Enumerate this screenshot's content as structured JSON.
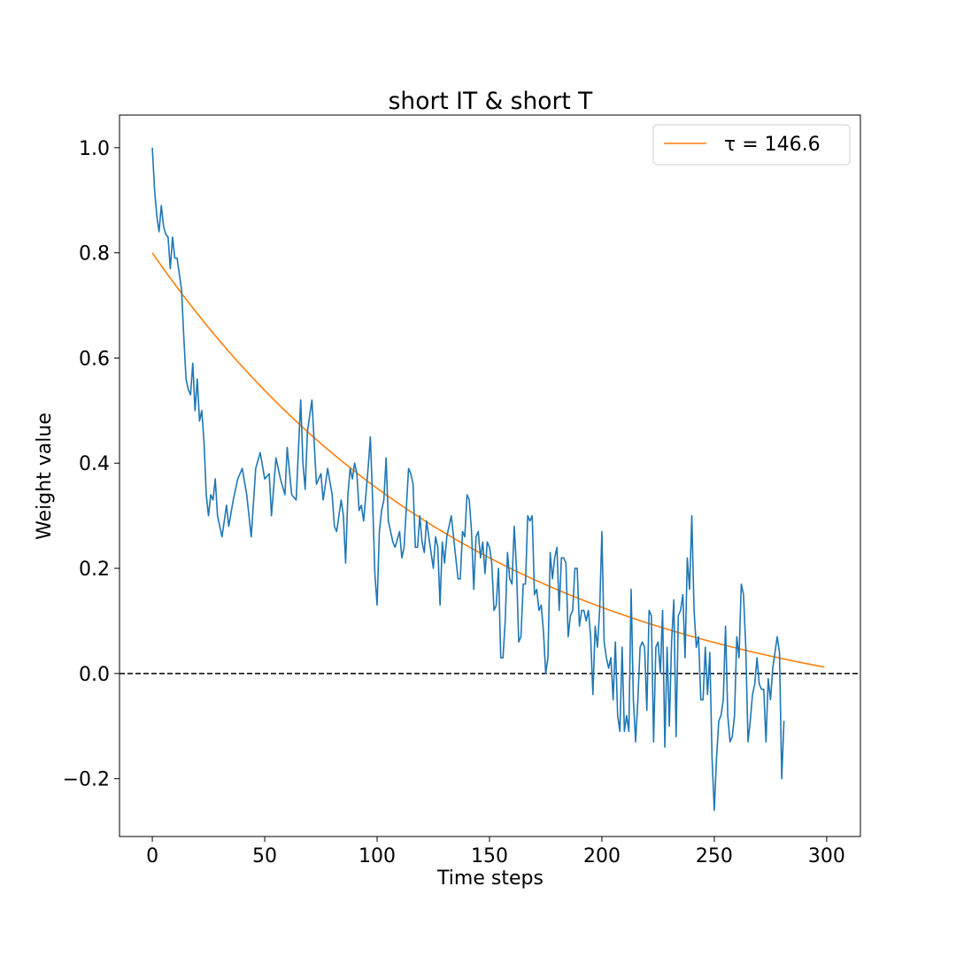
{
  "chart_data": {
    "type": "line",
    "title": "short IT & short T",
    "xlabel": "Time steps",
    "ylabel": "Weight value",
    "xlim": [
      -14.6,
      315
    ],
    "ylim": [
      -0.31,
      1.062
    ],
    "xticks": [
      0,
      50,
      100,
      150,
      200,
      250,
      300
    ],
    "xtick_labels": [
      "0",
      "50",
      "100",
      "150",
      "200",
      "250",
      "300"
    ],
    "yticks": [
      -0.2,
      0.0,
      0.2,
      0.4,
      0.6,
      0.8,
      1.0
    ],
    "ytick_labels": [
      "−0.2",
      "0.0",
      "0.2",
      "0.4",
      "0.6",
      "0.8",
      "1.0"
    ],
    "grid": false,
    "legend_position": "upper right",
    "legend_label": "τ =  146.6",
    "reference_line": {
      "y": 0.0,
      "style": "dashed",
      "color": "#000000"
    },
    "series": [
      {
        "name": "τ =  146.6",
        "role": "exponential fit",
        "color": "#ff7f0e",
        "function": "a*exp(-x/tau)+c",
        "params": {
          "a": 0.9056,
          "tau": 146.6,
          "c": -0.1056
        },
        "x_range": [
          0,
          299
        ]
      },
      {
        "role": "weight trace",
        "color": "#1f77b4",
        "anchors": [
          [
            0,
            1.0
          ],
          [
            1,
            0.92
          ],
          [
            2,
            0.87
          ],
          [
            3,
            0.84
          ],
          [
            4,
            0.89
          ],
          [
            5,
            0.85
          ],
          [
            6,
            0.835
          ],
          [
            7,
            0.83
          ],
          [
            8,
            0.77
          ],
          [
            9,
            0.83
          ],
          [
            10,
            0.79
          ],
          [
            11,
            0.79
          ],
          [
            12,
            0.76
          ],
          [
            13,
            0.73
          ],
          [
            14,
            0.64
          ],
          [
            15,
            0.56
          ],
          [
            16,
            0.54
          ],
          [
            17,
            0.53
          ],
          [
            18,
            0.59
          ],
          [
            19,
            0.5
          ],
          [
            20,
            0.56
          ],
          [
            21,
            0.48
          ],
          [
            22,
            0.5
          ],
          [
            23,
            0.44
          ],
          [
            24,
            0.34
          ],
          [
            25,
            0.3
          ],
          [
            26,
            0.34
          ],
          [
            27,
            0.33
          ],
          [
            28,
            0.37
          ],
          [
            29,
            0.3
          ],
          [
            30,
            0.28
          ],
          [
            31,
            0.26
          ],
          [
            33,
            0.32
          ],
          [
            34,
            0.28
          ],
          [
            36,
            0.33
          ],
          [
            38,
            0.37
          ],
          [
            40,
            0.39
          ],
          [
            42,
            0.34
          ],
          [
            44,
            0.26
          ],
          [
            46,
            0.39
          ],
          [
            48,
            0.42
          ],
          [
            50,
            0.37
          ],
          [
            52,
            0.38
          ],
          [
            53,
            0.3
          ],
          [
            55,
            0.41
          ],
          [
            57,
            0.37
          ],
          [
            59,
            0.34
          ],
          [
            60,
            0.43
          ],
          [
            62,
            0.34
          ],
          [
            64,
            0.33
          ],
          [
            66,
            0.52
          ],
          [
            67,
            0.4
          ],
          [
            68,
            0.35
          ],
          [
            69,
            0.46
          ],
          [
            71,
            0.52
          ],
          [
            72,
            0.44
          ],
          [
            73,
            0.36
          ],
          [
            75,
            0.38
          ],
          [
            76,
            0.33
          ],
          [
            78,
            0.39
          ],
          [
            80,
            0.34
          ],
          [
            81,
            0.28
          ],
          [
            82,
            0.27
          ],
          [
            84,
            0.33
          ],
          [
            85,
            0.3
          ],
          [
            86,
            0.21
          ],
          [
            87,
            0.34
          ],
          [
            88,
            0.39
          ],
          [
            89,
            0.37
          ],
          [
            90,
            0.4
          ],
          [
            91,
            0.38
          ],
          [
            92,
            0.31
          ],
          [
            93,
            0.32
          ],
          [
            94,
            0.29
          ],
          [
            95,
            0.34
          ],
          [
            96,
            0.39
          ],
          [
            97,
            0.45
          ],
          [
            98,
            0.33
          ],
          [
            99,
            0.19
          ],
          [
            100,
            0.13
          ],
          [
            101,
            0.27
          ],
          [
            102,
            0.31
          ],
          [
            103,
            0.33
          ],
          [
            104,
            0.41
          ],
          [
            105,
            0.29
          ],
          [
            106,
            0.27
          ],
          [
            107,
            0.25
          ],
          [
            108,
            0.24
          ],
          [
            110,
            0.27
          ],
          [
            111,
            0.22
          ],
          [
            112,
            0.24
          ],
          [
            114,
            0.39
          ],
          [
            115,
            0.38
          ],
          [
            116,
            0.36
          ],
          [
            117,
            0.24
          ],
          [
            118,
            0.24
          ],
          [
            119,
            0.3
          ],
          [
            120,
            0.25
          ],
          [
            121,
            0.23
          ],
          [
            122,
            0.29
          ],
          [
            124,
            0.23
          ],
          [
            125,
            0.2
          ],
          [
            126,
            0.26
          ],
          [
            127,
            0.24
          ],
          [
            128,
            0.13
          ],
          [
            129,
            0.25
          ],
          [
            130,
            0.21
          ],
          [
            131,
            0.26
          ],
          [
            133,
            0.3
          ],
          [
            135,
            0.22
          ],
          [
            136,
            0.18
          ],
          [
            137,
            0.18
          ],
          [
            138,
            0.27
          ],
          [
            139,
            0.26
          ],
          [
            140,
            0.34
          ],
          [
            141,
            0.33
          ],
          [
            142,
            0.27
          ],
          [
            143,
            0.16
          ],
          [
            144,
            0.26
          ],
          [
            145,
            0.27
          ],
          [
            146,
            0.22
          ],
          [
            147,
            0.25
          ],
          [
            148,
            0.19
          ],
          [
            149,
            0.25
          ],
          [
            150,
            0.24
          ],
          [
            151,
            0.21
          ],
          [
            152,
            0.12
          ],
          [
            153,
            0.13
          ],
          [
            154,
            0.2
          ],
          [
            155,
            0.03
          ],
          [
            156,
            0.03
          ],
          [
            157,
            0.1
          ],
          [
            158,
            0.23
          ],
          [
            159,
            0.18
          ],
          [
            160,
            0.17
          ],
          [
            161,
            0.28
          ],
          [
            162,
            0.2
          ],
          [
            163,
            0.06
          ],
          [
            164,
            0.07
          ],
          [
            165,
            0.17
          ],
          [
            166,
            0.17
          ],
          [
            167,
            0.3
          ],
          [
            168,
            0.29
          ],
          [
            169,
            0.3
          ],
          [
            170,
            0.15
          ],
          [
            171,
            0.16
          ],
          [
            172,
            0.12
          ],
          [
            173,
            0.13
          ],
          [
            174,
            0.08
          ],
          [
            175,
            0.0
          ],
          [
            176,
            0.03
          ],
          [
            177,
            0.23
          ],
          [
            178,
            0.18
          ],
          [
            179,
            0.22
          ],
          [
            180,
            0.24
          ],
          [
            181,
            0.12
          ],
          [
            182,
            0.22
          ],
          [
            183,
            0.22
          ],
          [
            184,
            0.21
          ],
          [
            185,
            0.07
          ],
          [
            186,
            0.11
          ],
          [
            187,
            0.12
          ],
          [
            188,
            0.2
          ],
          [
            189,
            0.2
          ],
          [
            190,
            0.09
          ],
          [
            191,
            0.12
          ],
          [
            192,
            0.12
          ],
          [
            193,
            0.1
          ],
          [
            194,
            0.12
          ],
          [
            195,
            0.07
          ],
          [
            196,
            -0.04
          ],
          [
            197,
            0.09
          ],
          [
            198,
            0.05
          ],
          [
            199,
            0.12
          ],
          [
            200,
            0.27
          ],
          [
            201,
            0.06
          ],
          [
            202,
            0.03
          ],
          [
            203,
            0.01
          ],
          [
            204,
            0.03
          ],
          [
            205,
            -0.05
          ],
          [
            206,
            0.06
          ],
          [
            207,
            -0.08
          ],
          [
            208,
            -0.11
          ],
          [
            209,
            0.05
          ],
          [
            210,
            -0.11
          ],
          [
            211,
            -0.08
          ],
          [
            212,
            -0.11
          ],
          [
            213,
            0.16
          ],
          [
            214,
            -0.05
          ],
          [
            215,
            -0.13
          ],
          [
            216,
            -0.05
          ],
          [
            217,
            0.05
          ],
          [
            218,
            0.06
          ],
          [
            219,
            0.05
          ],
          [
            220,
            -0.07
          ],
          [
            221,
            0.12
          ],
          [
            222,
            0.11
          ],
          [
            223,
            -0.13
          ],
          [
            224,
            0.05
          ],
          [
            225,
            0.06
          ],
          [
            226,
            0.0
          ],
          [
            227,
            0.12
          ],
          [
            228,
            -0.14
          ],
          [
            229,
            0.05
          ],
          [
            230,
            -0.1
          ],
          [
            231,
            0.06
          ],
          [
            232,
            0.14
          ],
          [
            233,
            -0.12
          ],
          [
            234,
            0.11
          ],
          [
            235,
            0.12
          ],
          [
            236,
            0.15
          ],
          [
            237,
            0.03
          ],
          [
            238,
            0.22
          ],
          [
            239,
            0.16
          ],
          [
            240,
            0.3
          ],
          [
            241,
            0.12
          ],
          [
            242,
            0.05
          ],
          [
            243,
            0.07
          ],
          [
            244,
            -0.05
          ],
          [
            245,
            -0.05
          ],
          [
            246,
            0.05
          ],
          [
            247,
            -0.04
          ],
          [
            248,
            0.04
          ],
          [
            249,
            -0.16
          ],
          [
            250,
            -0.26
          ],
          [
            251,
            -0.16
          ],
          [
            252,
            -0.09
          ],
          [
            253,
            -0.08
          ],
          [
            254,
            -0.05
          ],
          [
            255,
            0.09
          ],
          [
            256,
            -0.08
          ],
          [
            257,
            -0.13
          ],
          [
            258,
            -0.12
          ],
          [
            259,
            -0.08
          ],
          [
            260,
            0.07
          ],
          [
            261,
            0.03
          ],
          [
            262,
            0.17
          ],
          [
            263,
            0.15
          ],
          [
            264,
            0.05
          ],
          [
            265,
            -0.13
          ],
          [
            266,
            -0.09
          ],
          [
            267,
            -0.04
          ],
          [
            268,
            -0.02
          ],
          [
            269,
            0.03
          ],
          [
            270,
            -0.02
          ],
          [
            271,
            -0.03
          ],
          [
            272,
            -0.03
          ],
          [
            273,
            -0.13
          ],
          [
            274,
            -0.01
          ],
          [
            275,
            -0.05
          ],
          [
            276,
            0.01
          ],
          [
            277,
            0.04
          ],
          [
            278,
            0.07
          ],
          [
            279,
            0.04
          ],
          [
            280,
            -0.2
          ],
          [
            281,
            -0.09
          ]
        ]
      }
    ]
  }
}
